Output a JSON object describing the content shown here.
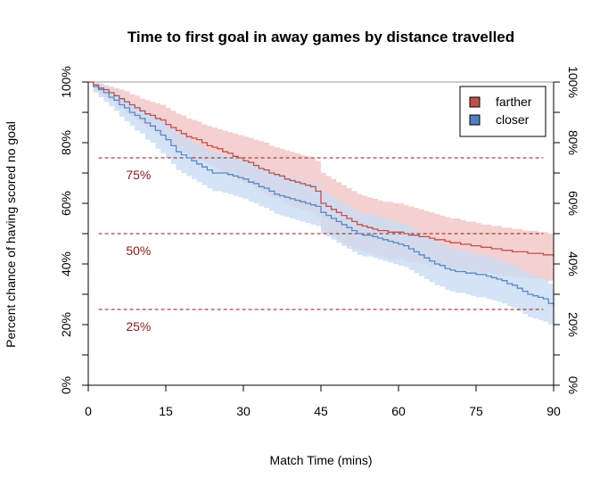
{
  "chart_data": {
    "type": "line",
    "title": "Time to first goal in away games by distance travelled",
    "xlabel": "Match Time (mins)",
    "ylabel": "Percent chance of having scored no goal",
    "xlim": [
      0,
      90
    ],
    "ylim": [
      0,
      100
    ],
    "x_ticks": [
      0,
      15,
      30,
      45,
      60,
      75,
      90
    ],
    "y_ticks": [
      0,
      20,
      40,
      60,
      80,
      100
    ],
    "y_tick_labels": [
      "0%",
      "20%",
      "40%",
      "60%",
      "80%",
      "100%"
    ],
    "grid": false,
    "legend_position": "top-right",
    "reference_lines": [
      {
        "value": 75,
        "label": "75%"
      },
      {
        "value": 50,
        "label": "50%"
      },
      {
        "value": 25,
        "label": "25%"
      }
    ],
    "series": [
      {
        "name": "farther",
        "color": "#c0504d",
        "line_color": "#c0504d",
        "band_color": "#f2c4c4",
        "x": [
          0,
          1,
          2,
          3,
          4,
          5,
          6,
          7,
          8,
          9,
          10,
          11,
          12,
          13,
          14,
          15,
          16,
          17,
          18,
          19,
          20,
          21,
          22,
          23,
          24,
          25,
          26,
          27,
          28,
          29,
          30,
          31,
          32,
          33,
          34,
          35,
          36,
          37,
          38,
          39,
          40,
          41,
          42,
          43,
          44,
          45,
          46,
          47,
          48,
          49,
          50,
          51,
          52,
          53,
          54,
          55,
          56,
          57,
          58,
          59,
          60,
          61,
          62,
          63,
          64,
          65,
          66,
          67,
          68,
          69,
          70,
          71,
          72,
          73,
          74,
          75,
          76,
          77,
          78,
          79,
          80,
          81,
          82,
          83,
          84,
          85,
          86,
          87,
          88,
          89,
          90
        ],
        "values": [
          100,
          99,
          98,
          97.5,
          96.5,
          95.5,
          94.5,
          93.5,
          92.5,
          91.5,
          90.5,
          89.5,
          89,
          88,
          87.5,
          86,
          85,
          84,
          83,
          82,
          81.5,
          81,
          80,
          79,
          78.5,
          78,
          77,
          76.5,
          75.5,
          75,
          74,
          73.5,
          72.5,
          71.5,
          71,
          70,
          69.5,
          69,
          68,
          67.5,
          67,
          66.5,
          66,
          65.5,
          64,
          60,
          59,
          58,
          57,
          56,
          55,
          54,
          53,
          52.5,
          52,
          51.5,
          51,
          51,
          50.5,
          50.5,
          50.5,
          50,
          49.5,
          49.5,
          49,
          49,
          48.5,
          48,
          48,
          47.5,
          47,
          47,
          46.5,
          46.5,
          46,
          46,
          45.5,
          45.5,
          45,
          45,
          44.5,
          44.5,
          44,
          44,
          44,
          43.5,
          43.5,
          43.5,
          43,
          43,
          42.5
        ],
        "upper": [
          100,
          100,
          99.5,
          99,
          98.5,
          98,
          97.5,
          97,
          96,
          95.5,
          94.5,
          94,
          93.5,
          93,
          92.5,
          91.5,
          90.5,
          89.5,
          89,
          88,
          87.5,
          87,
          86,
          85.5,
          85,
          84.5,
          84,
          83.5,
          83,
          82.5,
          82,
          81.5,
          81,
          80.5,
          80,
          79,
          78.5,
          78,
          77.5,
          77,
          76.5,
          76,
          75.5,
          75,
          74,
          70,
          69,
          68,
          67,
          66,
          65,
          64,
          63,
          62.5,
          62,
          61.5,
          61,
          60.5,
          60.5,
          60,
          60,
          59.5,
          59,
          58.5,
          58,
          57.5,
          57,
          56.5,
          56,
          55.5,
          55,
          55,
          54.5,
          54,
          54,
          53.5,
          53,
          53,
          52.5,
          52.5,
          52,
          52,
          51.5,
          51.5,
          51,
          51,
          51,
          50.5,
          50.5,
          50,
          50
        ],
        "lower": [
          100,
          97.5,
          96,
          95,
          94,
          92.5,
          91,
          89.5,
          88.5,
          87.5,
          86.5,
          85,
          84.5,
          83,
          82,
          80.5,
          79,
          78,
          77,
          76,
          75,
          74.5,
          73.5,
          72.5,
          72,
          71,
          70,
          69.5,
          68.5,
          67.5,
          66.5,
          66,
          65,
          64,
          63,
          62,
          61.5,
          61,
          60,
          59,
          58.5,
          58,
          57.5,
          57,
          55.5,
          51,
          50,
          49,
          48,
          47,
          46,
          45,
          44.5,
          44,
          43.5,
          43,
          42.5,
          42,
          41.5,
          41.5,
          41.5,
          41,
          40.5,
          40.5,
          40,
          40,
          39.5,
          39.5,
          39,
          39,
          38.5,
          38.5,
          38,
          38,
          37.5,
          37.5,
          37,
          37,
          36.5,
          36.5,
          36,
          36,
          35.5,
          35.5,
          35.5,
          35,
          35,
          35,
          34.5,
          34.5,
          34
        ]
      },
      {
        "name": "closer",
        "color": "#4f7fc4",
        "line_color": "#5b86c8",
        "band_color": "#c9dcf2",
        "x": [
          0,
          1,
          2,
          3,
          4,
          5,
          6,
          7,
          8,
          9,
          10,
          11,
          12,
          13,
          14,
          15,
          16,
          17,
          18,
          19,
          20,
          21,
          22,
          23,
          24,
          25,
          26,
          27,
          28,
          29,
          30,
          31,
          32,
          33,
          34,
          35,
          36,
          37,
          38,
          39,
          40,
          41,
          42,
          43,
          44,
          45,
          46,
          47,
          48,
          49,
          50,
          51,
          52,
          53,
          54,
          55,
          56,
          57,
          58,
          59,
          60,
          61,
          62,
          63,
          64,
          65,
          66,
          67,
          68,
          69,
          70,
          71,
          72,
          73,
          74,
          75,
          76,
          77,
          78,
          79,
          80,
          81,
          82,
          83,
          84,
          85,
          86,
          87,
          88,
          89,
          90
        ],
        "values": [
          100,
          98.5,
          97.5,
          96.5,
          95,
          94,
          92.5,
          91.5,
          90,
          89,
          88,
          86.5,
          85.5,
          84,
          82.5,
          81,
          79,
          77,
          76,
          75,
          74,
          73,
          72,
          71,
          70,
          70,
          70,
          69.5,
          69,
          68.5,
          68,
          67,
          66.5,
          65.5,
          65,
          64,
          63,
          62.5,
          62,
          61.5,
          61,
          60.5,
          60,
          59.5,
          59,
          57,
          56,
          55,
          54,
          53,
          52,
          51,
          50,
          49.5,
          49.5,
          49,
          48.5,
          48,
          47.5,
          47,
          46.5,
          46,
          45,
          44,
          43,
          42,
          41,
          40,
          39.5,
          38.5,
          38,
          37.5,
          37.5,
          37,
          37,
          36.5,
          36.5,
          36,
          35.5,
          35,
          34.5,
          33.5,
          33,
          32,
          31,
          30,
          29.5,
          29,
          28.5,
          27,
          26
        ],
        "upper": [
          100,
          100,
          99.5,
          98.5,
          97.5,
          96.5,
          95.5,
          94.5,
          93.5,
          92.5,
          91.5,
          90.5,
          89.5,
          88.5,
          87.5,
          86,
          84.5,
          83,
          82,
          81,
          80,
          79,
          78,
          77,
          76.5,
          76.5,
          76,
          75.5,
          75,
          74.5,
          74,
          73.5,
          73,
          72,
          71.5,
          71,
          70,
          69.5,
          69,
          68.5,
          68,
          67.5,
          67,
          66.5,
          66,
          64,
          63,
          62,
          61,
          60,
          59,
          58,
          57,
          56.5,
          56.5,
          56,
          55.5,
          55,
          54.5,
          54,
          53.5,
          53,
          52,
          51,
          50,
          49,
          48,
          47,
          46.5,
          45.5,
          45,
          44.5,
          44.5,
          44,
          43.5,
          43,
          43,
          42.5,
          42,
          41.5,
          41,
          40,
          39.5,
          38.5,
          37.5,
          36.5,
          36,
          35.5,
          35,
          33.5,
          32.5
        ],
        "lower": [
          100,
          96.5,
          95,
          93.5,
          92,
          90.5,
          88.5,
          87,
          85.5,
          84,
          83,
          81,
          80,
          78,
          76.5,
          75,
          73,
          71,
          70,
          69,
          68,
          67,
          66,
          65,
          64,
          64,
          63.5,
          63,
          62.5,
          62,
          61.5,
          60.5,
          60,
          59,
          58.5,
          57.5,
          56.5,
          56,
          55.5,
          55,
          54.5,
          54,
          53.5,
          53,
          52.5,
          50,
          49,
          48,
          47,
          46,
          45,
          44,
          43,
          42.5,
          42.5,
          42,
          41.5,
          41,
          40.5,
          40,
          39.5,
          39,
          38,
          37,
          36,
          35,
          34,
          33,
          32.5,
          31.5,
          31,
          30.5,
          30.5,
          30,
          29.5,
          29,
          29,
          28.5,
          28,
          27.5,
          27,
          26,
          25.5,
          24.5,
          23.5,
          22.5,
          22,
          21.5,
          21,
          20,
          19.5
        ]
      }
    ]
  }
}
